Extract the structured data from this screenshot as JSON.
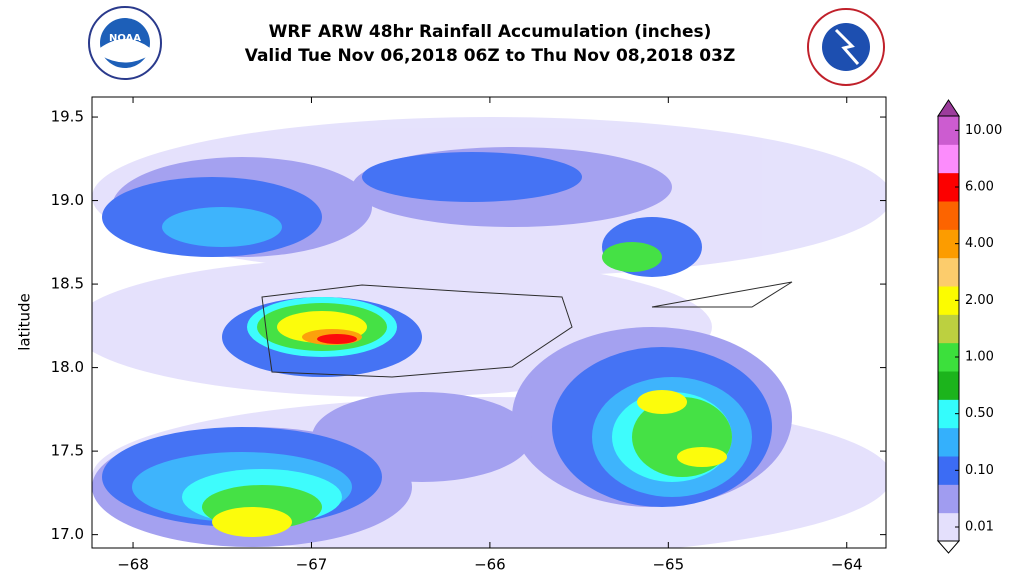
{
  "header": {
    "title": "WRF ARW 48hr Rainfall Accumulation (inches)",
    "subtitle": "Valid Tue Nov 06,2018 06Z to Thu Nov 08,2018 03Z",
    "left_logo": "NOAA"
  },
  "map": {
    "ylabel": "latitude",
    "xlim": [
      -68.23,
      -63.78
    ],
    "ylim": [
      16.92,
      19.62
    ],
    "xticks": [
      {
        "value": -68,
        "label": "−68"
      },
      {
        "value": -67,
        "label": "−67"
      },
      {
        "value": -66,
        "label": "−66"
      },
      {
        "value": -65,
        "label": "−65"
      },
      {
        "value": -64,
        "label": "−64"
      }
    ],
    "yticks": [
      {
        "value": 17,
        "label": "17.0"
      },
      17.5,
      {
        "value": 18,
        "label": "18.0"
      },
      18.5,
      {
        "value": 19,
        "label": "19.0"
      },
      19.5
    ]
  },
  "colorbar": {
    "colors": [
      "#e4e0fc",
      "#a09cf0",
      "#3c6cf4",
      "#34b0fc",
      "#34fcfc",
      "#1cb41c",
      "#3ce03c",
      "#bcd040",
      "#fcfc00",
      "#fccc6c",
      "#fc9c00",
      "#fc6400",
      "#fc0000",
      "#fc8cfc",
      "#cc5cd0"
    ],
    "under_color": "#ffffff",
    "over_color": "#9c3c9c",
    "ticks": [
      {
        "value": 0.01,
        "label": "0.01"
      },
      {
        "value": 0.1,
        "label": "0.10"
      },
      {
        "value": 0.5,
        "label": "0.50"
      },
      {
        "value": 1,
        "label": "1.00"
      },
      {
        "value": 2,
        "label": "2.00"
      },
      {
        "value": 4,
        "label": "4.00"
      },
      {
        "value": 6,
        "label": "6.00"
      },
      {
        "value": 10,
        "label": "10.00"
      }
    ]
  }
}
